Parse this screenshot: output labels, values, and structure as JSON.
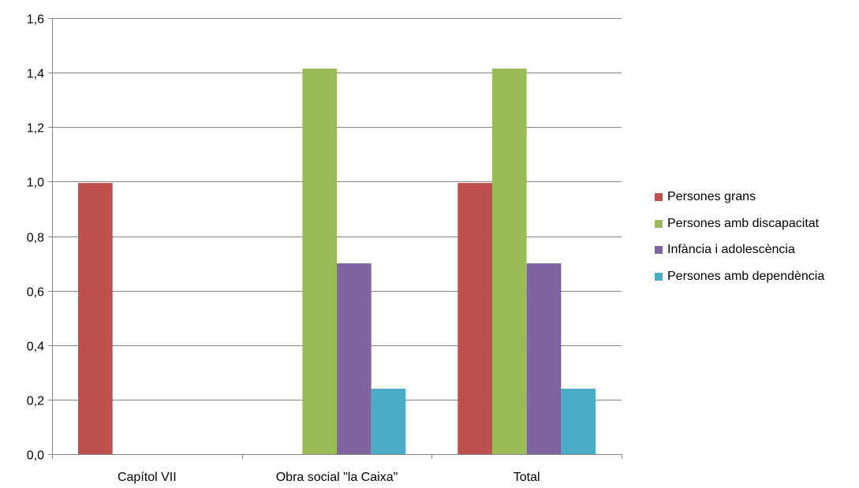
{
  "chart_data": {
    "type": "bar",
    "title": "",
    "xlabel": "",
    "ylabel": "",
    "ylim": [
      0,
      1.6
    ],
    "yticks": [
      0.0,
      0.2,
      0.4,
      0.6,
      0.8,
      1.0,
      1.2,
      1.4,
      1.6
    ],
    "ytick_labels": [
      "0,0",
      "0,2",
      "0,4",
      "0,6",
      "0,8",
      "1,0",
      "1,2",
      "1,4",
      "1,6"
    ],
    "grid": true,
    "legend_position": "right",
    "categories": [
      "Capítol VII",
      "Obra social \"la Caixa\"",
      "Total"
    ],
    "series": [
      {
        "name": "Persones grans",
        "color": "#C0504D",
        "values": [
          0.995,
          0,
          0.995
        ]
      },
      {
        "name": "Persones amb discapacitat",
        "color": "#9BBB59",
        "values": [
          0,
          1.415,
          1.415
        ]
      },
      {
        "name": "Infància i adolescència",
        "color": "#8064A2",
        "values": [
          0,
          0.7,
          0.7
        ]
      },
      {
        "name": "Persones amb dependència",
        "color": "#4BACC6",
        "values": [
          0,
          0.24,
          0.24
        ]
      }
    ]
  }
}
